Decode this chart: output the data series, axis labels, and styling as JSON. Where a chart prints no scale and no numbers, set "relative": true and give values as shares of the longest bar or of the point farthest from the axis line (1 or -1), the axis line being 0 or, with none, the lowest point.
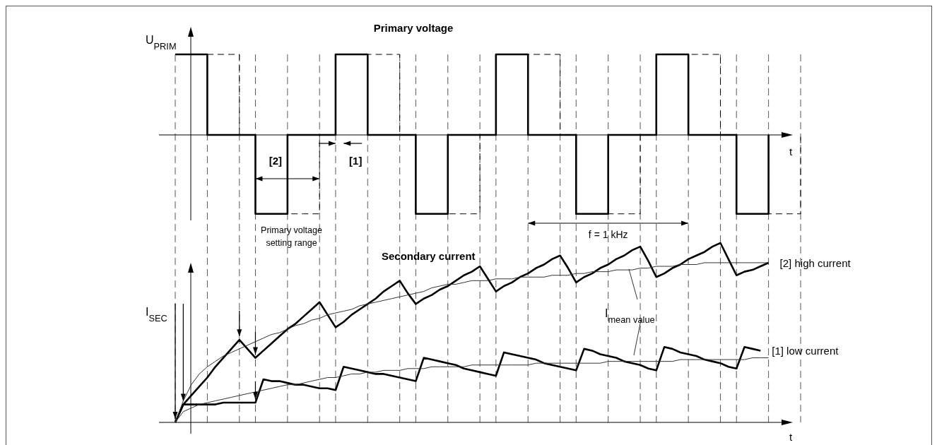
{
  "chart_data": [
    {
      "type": "step",
      "title": "Primary voltage",
      "ylabel": "U$_{PRIM}$",
      "xlabel": "t",
      "relative": true,
      "grid": "x",
      "categories": [
        null,
        null,
        null,
        null,
        null,
        null,
        null,
        null,
        null,
        null,
        null,
        null,
        null,
        null,
        null,
        null,
        null,
        null,
        null,
        null,
        null,
        null,
        null,
        null,
        null,
        null,
        null,
        null,
        null,
        null,
        null,
        null,
        null,
        null,
        null,
        null,
        null,
        null,
        null,
        null,
        null,
        null,
        null,
        null,
        null,
        null,
        null,
        null,
        null,
        null,
        null,
        null,
        null,
        null,
        null,
        null,
        null,
        null,
        null,
        null,
        null,
        null,
        null,
        null,
        null,
        null,
        null,
        null,
        null,
        null,
        null,
        null,
        null,
        null,
        null,
        null,
        null,
        null,
        null
      ],
      "series": [
        {
          "color": "#000000",
          "line_style": "dashed",
          "values": [
            1,
            1,
            1,
            1,
            1,
            1,
            1,
            1,
            0,
            0,
            -0.98,
            -0.98,
            -0.98,
            -0.98,
            -0.98,
            -0.98,
            -0.98,
            -0.98,
            0,
            0,
            1,
            1,
            1,
            1,
            1,
            1,
            1,
            1,
            0,
            0,
            -0.98,
            -0.98,
            -0.98,
            -0.98,
            -0.98,
            -0.98,
            -0.98,
            -0.98,
            0,
            0,
            1,
            1,
            1,
            1,
            1,
            1,
            1,
            1,
            0,
            0,
            -0.98,
            -0.98,
            -0.98,
            -0.98,
            -0.98,
            -0.98,
            -0.98,
            -0.98,
            0,
            0,
            1,
            1,
            1,
            1,
            1,
            1,
            1,
            1,
            0,
            0,
            -0.98,
            -0.98,
            -0.98,
            -0.98,
            -0.98,
            -0.98,
            -0.98,
            -0.98,
            0
          ]
        },
        {
          "color": "#000000",
          "line_style": "solid",
          "values": [
            1,
            1,
            1,
            1,
            0,
            0,
            0,
            0,
            0,
            0,
            -0.98,
            -0.98,
            -0.98,
            -0.98,
            0,
            0,
            0,
            0,
            0,
            0,
            1,
            1,
            1,
            1,
            0,
            0,
            0,
            0,
            0,
            0,
            -0.98,
            -0.98,
            -0.98,
            -0.98,
            0,
            0,
            0,
            0,
            0,
            0,
            1,
            1,
            1,
            1,
            0,
            0,
            0,
            0,
            0,
            0,
            -0.98,
            -0.98,
            -0.98,
            -0.98,
            0,
            0,
            0,
            0,
            0,
            0,
            1,
            1,
            1,
            1,
            0,
            0,
            0,
            0,
            0,
            0,
            -0.98,
            -0.98,
            -0.98,
            -0.98,
            0,
            null,
            null,
            null,
            null
          ]
        }
      ],
      "annotations": [
        "[2]",
        "[1]",
        "Primary voltage setting range",
        "f = 1 kHz"
      ]
    },
    {
      "type": "line",
      "title": "Secondary current",
      "ylabel": "I$_{SEC}$",
      "xlabel": "t",
      "relative": true,
      "categories": [
        null,
        null,
        null,
        null,
        null,
        null,
        null,
        null,
        null,
        null,
        null,
        null,
        null,
        null,
        null,
        null,
        null,
        null,
        null,
        null,
        null,
        null,
        null,
        null,
        null,
        null,
        null,
        null,
        null,
        null,
        null,
        null,
        null,
        null,
        null,
        null,
        null,
        null,
        null,
        null,
        null,
        null,
        null,
        null,
        null,
        null,
        null,
        null,
        null,
        null,
        null,
        null,
        null,
        null,
        null,
        null,
        null,
        null,
        null,
        null,
        null,
        null,
        null,
        null,
        null,
        null,
        null,
        null,
        null,
        null,
        null,
        null,
        null,
        null,
        null,
        null,
        null,
        null,
        null
      ],
      "series": [
        {
          "name": "[2] high current",
          "color": "#000000",
          "values": [
            0,
            0.1,
            0.15,
            0.2,
            0.25,
            0.31,
            0.36,
            0.41,
            0.46,
            0.41,
            0.36,
            0.4,
            0.44,
            0.48,
            0.52,
            0.55,
            0.59,
            0.63,
            0.67,
            0.6,
            0.53,
            0.56,
            0.6,
            0.63,
            0.66,
            0.69,
            0.73,
            0.76,
            0.79,
            0.72,
            0.66,
            0.69,
            0.71,
            0.74,
            0.76,
            0.79,
            0.82,
            0.84,
            0.87,
            0.8,
            0.73,
            0.76,
            0.78,
            0.81,
            0.83,
            0.86,
            0.88,
            0.91,
            0.93,
            0.86,
            0.78,
            0.81,
            0.83,
            0.86,
            0.88,
            0.91,
            0.93,
            0.96,
            0.98,
            0.9,
            0.81,
            0.83,
            0.86,
            0.88,
            0.91,
            0.93,
            0.95,
            0.98,
            1,
            0.91,
            0.82,
            0.84,
            0.85,
            0.87,
            0.89,
            null,
            null,
            null,
            null
          ]
        },
        {
          "name": "[1] low current",
          "color": "#000000",
          "values": [
            0,
            0.1,
            0.1,
            0.1,
            0.1,
            0.1,
            0.11,
            0.11,
            0.11,
            0.11,
            0.11,
            0.24,
            0.23,
            0.23,
            0.22,
            0.21,
            0.21,
            0.2,
            0.19,
            0.19,
            0.18,
            0.31,
            0.3,
            0.29,
            0.28,
            0.27,
            0.27,
            0.26,
            0.25,
            0.24,
            0.23,
            0.36,
            0.35,
            0.34,
            0.33,
            0.32,
            0.3,
            0.29,
            0.28,
            0.27,
            0.26,
            0.39,
            0.38,
            0.37,
            0.36,
            0.35,
            0.33,
            0.32,
            0.31,
            0.3,
            0.29,
            0.41,
            0.4,
            0.38,
            0.37,
            0.36,
            0.34,
            0.33,
            0.32,
            0.3,
            0.29,
            0.42,
            0.41,
            0.39,
            0.38,
            0.37,
            0.35,
            0.34,
            0.33,
            0.31,
            0.3,
            0.42,
            0.41,
            0.4,
            null,
            null,
            null,
            null,
            null
          ]
        },
        {
          "color": "#333333",
          "values": [
            0,
            0.12,
            0.21,
            0.27,
            0.31,
            0.34,
            0.37,
            0.39,
            0.41,
            0.43,
            0.45,
            0.47,
            0.49,
            0.5,
            0.52,
            0.54,
            0.55,
            0.57,
            0.58,
            0.6,
            0.61,
            0.62,
            0.63,
            0.65,
            0.66,
            0.67,
            0.68,
            0.69,
            0.7,
            0.71,
            0.72,
            0.73,
            0.75,
            0.76,
            0.77,
            0.77,
            0.78,
            0.79,
            0.79,
            0.79,
            0.8,
            0.8,
            0.8,
            0.81,
            0.81,
            0.81,
            0.81,
            0.82,
            0.82,
            0.82,
            0.83,
            0.83,
            0.84,
            0.84,
            0.84,
            0.85,
            0.85,
            0.85,
            0.86,
            0.86,
            0.87,
            0.87,
            0.87,
            0.88,
            0.88,
            0.88,
            0.89,
            0.89,
            0.89,
            0.89,
            0.89,
            0.89,
            0.89,
            0.89,
            0.89,
            null,
            null,
            null,
            null
          ]
        },
        {
          "color": "#333333",
          "values": [
            0,
            0.06,
            0.08,
            0.1,
            0.11,
            0.12,
            0.13,
            0.14,
            0.15,
            0.16,
            0.17,
            0.18,
            0.19,
            0.2,
            0.21,
            0.21,
            0.22,
            0.23,
            0.24,
            0.25,
            0.25,
            0.26,
            0.27,
            0.27,
            0.28,
            0.28,
            0.29,
            0.29,
            0.29,
            0.3,
            0.3,
            0.3,
            0.31,
            0.31,
            0.31,
            0.31,
            0.31,
            0.32,
            0.32,
            0.32,
            0.32,
            0.32,
            0.32,
            0.32,
            0.32,
            0.33,
            0.33,
            0.33,
            0.33,
            0.33,
            0.33,
            0.33,
            0.33,
            0.33,
            0.34,
            0.34,
            0.34,
            0.34,
            0.34,
            0.34,
            0.34,
            0.34,
            0.34,
            0.35,
            0.35,
            0.35,
            0.35,
            0.35,
            0.35,
            0.35,
            0.35,
            0.35,
            0.36,
            0.36,
            0.36,
            null,
            null,
            null,
            null
          ]
        }
      ],
      "annotations": [
        "I$_{mean value}$"
      ]
    }
  ]
}
